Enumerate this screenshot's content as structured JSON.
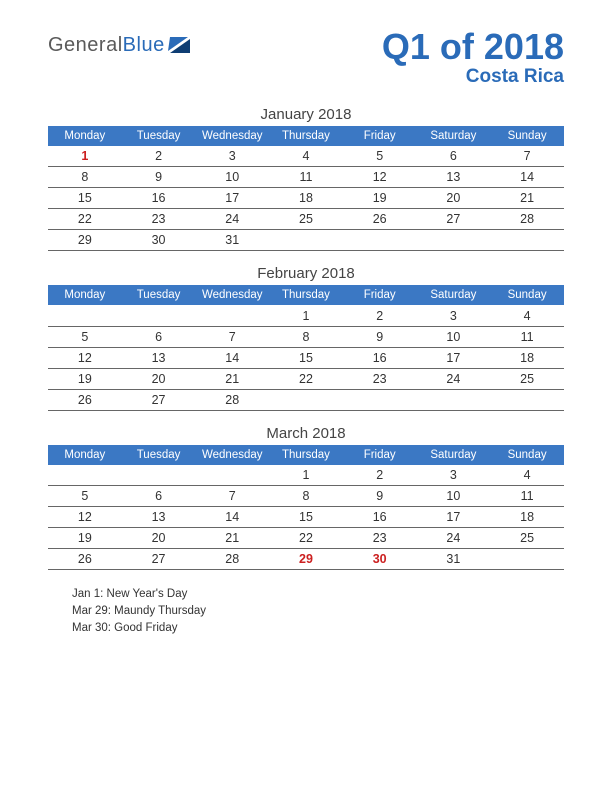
{
  "colors": {
    "brand_blue": "#2a6bb8",
    "header_bg": "#3b78c4",
    "header_text": "#ffffff",
    "text": "#333333",
    "holiday": "#cc2020",
    "row_border": "#666666",
    "background": "#ffffff"
  },
  "logo": {
    "word1": "General",
    "word2": "Blue"
  },
  "title": "Q1 of 2018",
  "subtitle": "Costa Rica",
  "day_headers": [
    "Monday",
    "Tuesday",
    "Wednesday",
    "Thursday",
    "Friday",
    "Saturday",
    "Sunday"
  ],
  "months": [
    {
      "title": "January 2018",
      "rows": [
        [
          {
            "d": "1",
            "h": true
          },
          {
            "d": "2"
          },
          {
            "d": "3"
          },
          {
            "d": "4"
          },
          {
            "d": "5"
          },
          {
            "d": "6"
          },
          {
            "d": "7"
          }
        ],
        [
          {
            "d": "8"
          },
          {
            "d": "9"
          },
          {
            "d": "10"
          },
          {
            "d": "11"
          },
          {
            "d": "12"
          },
          {
            "d": "13"
          },
          {
            "d": "14"
          }
        ],
        [
          {
            "d": "15"
          },
          {
            "d": "16"
          },
          {
            "d": "17"
          },
          {
            "d": "18"
          },
          {
            "d": "19"
          },
          {
            "d": "20"
          },
          {
            "d": "21"
          }
        ],
        [
          {
            "d": "22"
          },
          {
            "d": "23"
          },
          {
            "d": "24"
          },
          {
            "d": "25"
          },
          {
            "d": "26"
          },
          {
            "d": "27"
          },
          {
            "d": "28"
          }
        ],
        [
          {
            "d": "29"
          },
          {
            "d": "30"
          },
          {
            "d": "31"
          },
          {
            "d": ""
          },
          {
            "d": ""
          },
          {
            "d": ""
          },
          {
            "d": ""
          }
        ]
      ]
    },
    {
      "title": "February 2018",
      "rows": [
        [
          {
            "d": ""
          },
          {
            "d": ""
          },
          {
            "d": ""
          },
          {
            "d": "1"
          },
          {
            "d": "2"
          },
          {
            "d": "3"
          },
          {
            "d": "4"
          }
        ],
        [
          {
            "d": "5"
          },
          {
            "d": "6"
          },
          {
            "d": "7"
          },
          {
            "d": "8"
          },
          {
            "d": "9"
          },
          {
            "d": "10"
          },
          {
            "d": "11"
          }
        ],
        [
          {
            "d": "12"
          },
          {
            "d": "13"
          },
          {
            "d": "14"
          },
          {
            "d": "15"
          },
          {
            "d": "16"
          },
          {
            "d": "17"
          },
          {
            "d": "18"
          }
        ],
        [
          {
            "d": "19"
          },
          {
            "d": "20"
          },
          {
            "d": "21"
          },
          {
            "d": "22"
          },
          {
            "d": "23"
          },
          {
            "d": "24"
          },
          {
            "d": "25"
          }
        ],
        [
          {
            "d": "26"
          },
          {
            "d": "27"
          },
          {
            "d": "28"
          },
          {
            "d": ""
          },
          {
            "d": ""
          },
          {
            "d": ""
          },
          {
            "d": ""
          }
        ]
      ]
    },
    {
      "title": "March 2018",
      "rows": [
        [
          {
            "d": ""
          },
          {
            "d": ""
          },
          {
            "d": ""
          },
          {
            "d": "1"
          },
          {
            "d": "2"
          },
          {
            "d": "3"
          },
          {
            "d": "4"
          }
        ],
        [
          {
            "d": "5"
          },
          {
            "d": "6"
          },
          {
            "d": "7"
          },
          {
            "d": "8"
          },
          {
            "d": "9"
          },
          {
            "d": "10"
          },
          {
            "d": "11"
          }
        ],
        [
          {
            "d": "12"
          },
          {
            "d": "13"
          },
          {
            "d": "14"
          },
          {
            "d": "15"
          },
          {
            "d": "16"
          },
          {
            "d": "17"
          },
          {
            "d": "18"
          }
        ],
        [
          {
            "d": "19"
          },
          {
            "d": "20"
          },
          {
            "d": "21"
          },
          {
            "d": "22"
          },
          {
            "d": "23"
          },
          {
            "d": "24"
          },
          {
            "d": "25"
          }
        ],
        [
          {
            "d": "26"
          },
          {
            "d": "27"
          },
          {
            "d": "28"
          },
          {
            "d": "29",
            "h": true
          },
          {
            "d": "30",
            "h": true
          },
          {
            "d": "31"
          },
          {
            "d": ""
          }
        ]
      ]
    }
  ],
  "holiday_list": [
    "Jan 1: New Year's Day",
    "Mar 29: Maundy Thursday",
    "Mar 30: Good Friday"
  ]
}
